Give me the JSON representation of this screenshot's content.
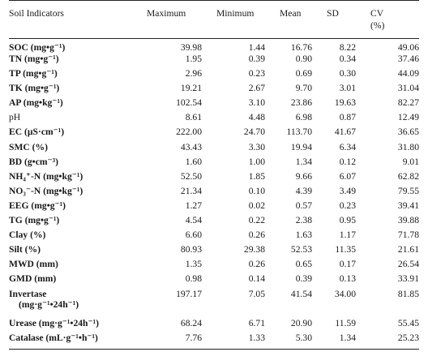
{
  "table": {
    "headers": {
      "indicator": "Soil Indicators",
      "maximum": "Maximum",
      "minimum": "Minimum",
      "mean": "Mean",
      "sd": "SD",
      "cv": "CV",
      "cv_unit": "(%)"
    },
    "rows": [
      {
        "name": "SOC (mg•g⁻¹)",
        "max": "39.98",
        "min": "1.44",
        "mean": "16.76",
        "sd": "8.22",
        "cv": "49.06"
      },
      {
        "name": "TN (mg•g⁻¹)",
        "max": "1.95",
        "min": "0.39",
        "mean": "0.90",
        "sd": "0.34",
        "cv": "37.46"
      },
      {
        "name": "TP (mg•g⁻¹)",
        "max": "2.96",
        "min": "0.23",
        "mean": "0.69",
        "sd": "0.30",
        "cv": "44.09"
      },
      {
        "name": "TK (mg•g⁻¹)",
        "max": "19.21",
        "min": "2.67",
        "mean": "9.70",
        "sd": "3.01",
        "cv": "31.04"
      },
      {
        "name": "AP (mg•kg⁻¹)",
        "max": "102.54",
        "min": "3.10",
        "mean": "23.86",
        "sd": "19.63",
        "cv": "82.27"
      },
      {
        "name": "pH",
        "max": "8.61",
        "min": "4.48",
        "mean": "6.98",
        "sd": "0.87",
        "cv": "12.49"
      },
      {
        "name": "EC (µS·cm⁻¹)",
        "max": "222.00",
        "min": "24.70",
        "mean": "113.70",
        "sd": "41.67",
        "cv": "36.65"
      },
      {
        "name": "SMC (%)",
        "max": "43.43",
        "min": "3.30",
        "mean": "19.94",
        "sd": "6.34",
        "cv": "31.80"
      },
      {
        "name": "BD (g•cm⁻³)",
        "max": "1.60",
        "min": "1.00",
        "mean": "1.34",
        "sd": "0.12",
        "cv": "9.01"
      },
      {
        "name": "NH₄⁺-N (mg•kg⁻¹)",
        "max": "52.50",
        "min": "1.85",
        "mean": "9.66",
        "sd": "6.07",
        "cv": "62.82"
      },
      {
        "name": "NO₃⁻-N (mg•kg⁻¹)",
        "max": "21.34",
        "min": "0.10",
        "mean": "4.39",
        "sd": "3.49",
        "cv": "79.55"
      },
      {
        "name": "EEG (mg•g⁻¹)",
        "max": "1.27",
        "min": "0.02",
        "mean": "0.57",
        "sd": "0.23",
        "cv": "39.41"
      },
      {
        "name": "TG (mg•g⁻¹)",
        "max": "4.54",
        "min": "0.22",
        "mean": "2.38",
        "sd": "0.95",
        "cv": "39.88"
      },
      {
        "name": "Clay (%)",
        "max": "6.60",
        "min": "0.26",
        "mean": "1.63",
        "sd": "1.17",
        "cv": "71.78"
      },
      {
        "name": "Silt (%)",
        "max": "80.93",
        "min": "29.38",
        "mean": "52.53",
        "sd": "11.35",
        "cv": "21.61"
      },
      {
        "name": "MWD (mm)",
        "max": "1.35",
        "min": "0.26",
        "mean": "0.65",
        "sd": "0.17",
        "cv": "26.54"
      },
      {
        "name": "GMD (mm)",
        "max": "0.98",
        "min": "0.14",
        "mean": "0.39",
        "sd": "0.13",
        "cv": "33.91"
      },
      {
        "name": "Invertase",
        "name_line2": "(mg·g⁻¹•24h⁻¹)",
        "max": "197.17",
        "min": "7.05",
        "mean": "41.54",
        "sd": "34.00",
        "cv": "81.85"
      },
      {
        "name": "Urease (mg·g⁻¹•24h⁻¹)",
        "max": "68.24",
        "min": "6.71",
        "mean": "20.90",
        "sd": "11.59",
        "cv": "55.45"
      },
      {
        "name": "Catalase (mL·g⁻¹•h⁻¹)",
        "max": "7.76",
        "min": "1.33",
        "mean": "5.30",
        "sd": "1.34",
        "cv": "25.23"
      }
    ]
  }
}
